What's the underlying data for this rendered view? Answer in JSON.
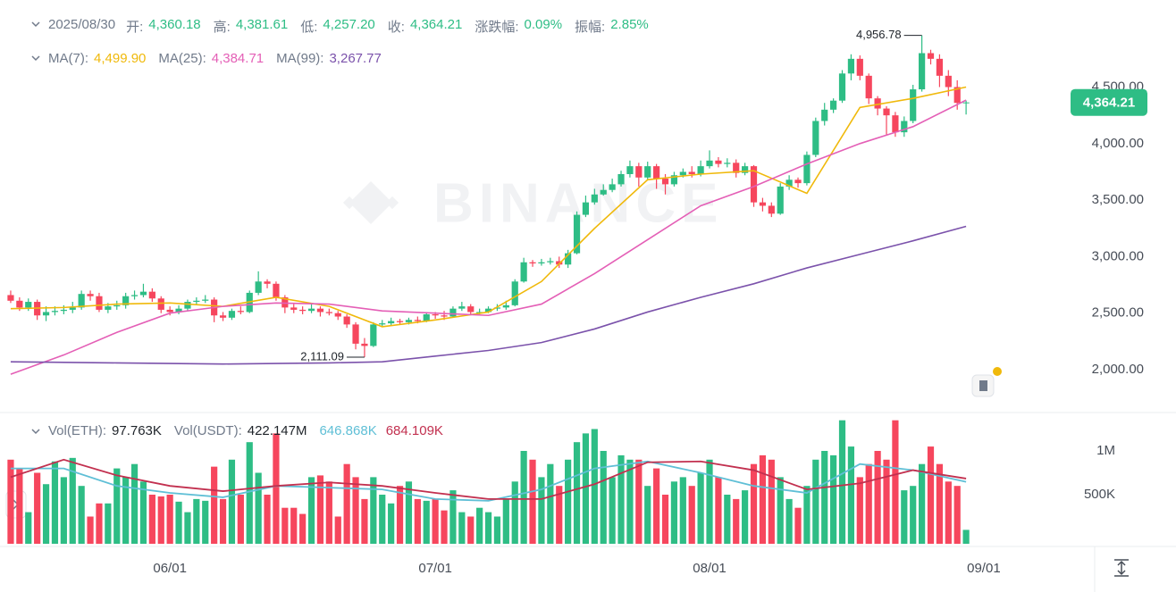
{
  "chart_data": {
    "type": "candlestick",
    "date": "2025/08/30",
    "info": [
      {
        "label": "开:",
        "value": "4,360.18"
      },
      {
        "label": "高:",
        "value": "4,381.61"
      },
      {
        "label": "低:",
        "value": "4,257.20"
      },
      {
        "label": "收:",
        "value": "4,364.21"
      },
      {
        "label": "涨跌幅:",
        "value": "0.09%"
      },
      {
        "label": "振幅:",
        "value": "2.85%"
      }
    ],
    "watermark": "BINANCE",
    "up_color": "#2ebd85",
    "down_color": "#f6465d",
    "xlim": [
      -0.4,
      119
    ],
    "xticks": [
      {
        "value": 18,
        "label": "06/01"
      },
      {
        "value": 48,
        "label": "07/01"
      },
      {
        "value": 79,
        "label": "08/01"
      },
      {
        "value": 110,
        "label": "09/01"
      }
    ],
    "ylim": [
      1700,
      5207
    ],
    "yticks": [
      {
        "value": 2000,
        "label": "2,000.00"
      },
      {
        "value": 2500,
        "label": "2,500.00"
      },
      {
        "value": 3000,
        "label": "3,000.00"
      },
      {
        "value": 3500,
        "label": "3,500.00"
      },
      {
        "value": 4000,
        "label": "4,000.00"
      },
      {
        "value": 4500,
        "label": "4,500.00"
      }
    ],
    "open": [
      2660,
      2610,
      2550,
      2600,
      2480,
      2510,
      2520,
      2530,
      2550,
      2670,
      2650,
      2530,
      2560,
      2570,
      2650,
      2660,
      2690,
      2630,
      2530,
      2510,
      2540,
      2600,
      2610,
      2620,
      2480,
      2460,
      2520,
      2510,
      2680,
      2780,
      2760,
      2640,
      2550,
      2530,
      2520,
      2540,
      2510,
      2500,
      2470,
      2400,
      2230,
      2210,
      2400,
      2410,
      2430,
      2420,
      2440,
      2430,
      2490,
      2480,
      2470,
      2540,
      2560,
      2510,
      2510,
      2540,
      2550,
      2570,
      2780,
      2950,
      2940,
      2950,
      2960,
      2930,
      3030,
      3370,
      3480,
      3550,
      3590,
      3640,
      3730,
      3800,
      3700,
      3800,
      3690,
      3640,
      3720,
      3750,
      3730,
      3800,
      3850,
      3820,
      3830,
      3740,
      3800,
      3480,
      3450,
      3380,
      3620,
      3680,
      3650,
      3900,
      4200,
      4300,
      4380,
      4620,
      4750,
      4600,
      4400,
      4310,
      4250,
      4100,
      4200,
      4480,
      4800,
      4750,
      4600,
      4500,
      4360.18
    ],
    "high": [
      2700,
      2640,
      2630,
      2620,
      2560,
      2560,
      2570,
      2600,
      2700,
      2700,
      2680,
      2590,
      2610,
      2680,
      2700,
      2760,
      2720,
      2650,
      2560,
      2570,
      2620,
      2640,
      2660,
      2640,
      2510,
      2540,
      2560,
      2700,
      2870,
      2800,
      2780,
      2660,
      2580,
      2560,
      2580,
      2560,
      2540,
      2520,
      2490,
      2420,
      2280,
      2420,
      2440,
      2460,
      2450,
      2460,
      2470,
      2510,
      2510,
      2520,
      2560,
      2600,
      2580,
      2540,
      2560,
      2580,
      2610,
      2800,
      2990,
      2970,
      2980,
      2990,
      3000,
      3060,
      3400,
      3540,
      3600,
      3640,
      3690,
      3760,
      3850,
      3830,
      3840,
      3820,
      3730,
      3750,
      3780,
      3800,
      3850,
      3940,
      3880,
      3870,
      3860,
      3830,
      3810,
      3520,
      3480,
      3650,
      3720,
      3700,
      3930,
      4230,
      4360,
      4400,
      4650,
      4790,
      4780,
      4620,
      4420,
      4330,
      4280,
      4240,
      4520,
      4956.78,
      4830,
      4790,
      4650,
      4560,
      4381.61
    ],
    "low": [
      2590,
      2520,
      2520,
      2440,
      2430,
      2480,
      2490,
      2500,
      2530,
      2610,
      2510,
      2500,
      2530,
      2540,
      2620,
      2640,
      2600,
      2500,
      2480,
      2490,
      2520,
      2570,
      2590,
      2420,
      2430,
      2440,
      2490,
      2500,
      2660,
      2720,
      2610,
      2500,
      2500,
      2490,
      2500,
      2470,
      2480,
      2440,
      2370,
      2180,
      2111.09,
      2200,
      2380,
      2390,
      2400,
      2400,
      2410,
      2420,
      2450,
      2440,
      2460,
      2520,
      2490,
      2490,
      2500,
      2520,
      2530,
      2560,
      2770,
      2910,
      2920,
      2930,
      2900,
      2900,
      3020,
      3350,
      3460,
      3540,
      3570,
      3620,
      3700,
      3620,
      3680,
      3600,
      3550,
      3620,
      3700,
      3700,
      3710,
      3780,
      3790,
      3790,
      3700,
      3720,
      3440,
      3400,
      3350,
      3370,
      3590,
      3610,
      3630,
      3880,
      4160,
      4270,
      4360,
      4560,
      4560,
      4350,
      4250,
      4080,
      4060,
      4060,
      4180,
      4460,
      4700,
      4500,
      4420,
      4300,
      4257.2
    ],
    "close": [
      2610,
      2550,
      2600,
      2480,
      2510,
      2520,
      2530,
      2550,
      2670,
      2650,
      2530,
      2560,
      2570,
      2650,
      2660,
      2690,
      2630,
      2530,
      2510,
      2540,
      2600,
      2610,
      2620,
      2480,
      2460,
      2520,
      2510,
      2680,
      2780,
      2760,
      2640,
      2550,
      2530,
      2520,
      2540,
      2510,
      2500,
      2470,
      2400,
      2230,
      2210,
      2400,
      2410,
      2430,
      2420,
      2440,
      2430,
      2490,
      2480,
      2470,
      2540,
      2560,
      2510,
      2510,
      2540,
      2550,
      2570,
      2780,
      2950,
      2940,
      2950,
      2960,
      2930,
      3030,
      3370,
      3480,
      3550,
      3590,
      3640,
      3730,
      3800,
      3700,
      3800,
      3690,
      3640,
      3720,
      3750,
      3730,
      3800,
      3850,
      3820,
      3830,
      3740,
      3800,
      3480,
      3450,
      3380,
      3620,
      3680,
      3650,
      3900,
      4200,
      4300,
      4380,
      4620,
      4750,
      4600,
      4400,
      4310,
      4250,
      4100,
      4200,
      4480,
      4800,
      4750,
      4600,
      4500,
      4360,
      4364.21
    ],
    "ma": [
      {
        "label": "MA(7):",
        "value_label": "4,499.90",
        "color": "#f0b90b",
        "x": [
          0,
          6,
          12,
          18,
          24,
          30,
          36,
          42,
          48,
          54,
          60,
          66,
          72,
          78,
          84,
          90,
          96,
          102,
          108
        ],
        "values": [
          2540,
          2550,
          2580,
          2590,
          2560,
          2640,
          2560,
          2380,
          2440,
          2510,
          2780,
          3250,
          3680,
          3730,
          3760,
          3560,
          4320,
          4400,
          4499.9
        ]
      },
      {
        "label": "MA(25):",
        "value_label": "4,384.71",
        "color": "#e45fb6",
        "x": [
          0,
          6,
          12,
          18,
          24,
          30,
          36,
          42,
          48,
          54,
          60,
          66,
          72,
          78,
          84,
          90,
          96,
          102,
          108
        ],
        "values": [
          1960,
          2130,
          2330,
          2500,
          2560,
          2590,
          2580,
          2520,
          2500,
          2480,
          2580,
          2850,
          3150,
          3450,
          3620,
          3820,
          4000,
          4150,
          4384.71
        ]
      },
      {
        "label": "MA(99):",
        "value_label": "3,267.77",
        "color": "#7b52ab",
        "x": [
          0,
          6,
          12,
          18,
          24,
          30,
          36,
          42,
          48,
          54,
          60,
          66,
          72,
          78,
          84,
          90,
          96,
          102,
          108
        ],
        "values": [
          2070,
          2065,
          2060,
          2055,
          2050,
          2055,
          2060,
          2070,
          2120,
          2170,
          2240,
          2360,
          2510,
          2640,
          2760,
          2900,
          3020,
          3140,
          3267.77
        ]
      }
    ],
    "annotations": [
      {
        "x": 103,
        "value": 4956.78,
        "label": "4,956.78"
      },
      {
        "x": 40,
        "value": 2111.09,
        "label": "2,111.09"
      }
    ],
    "last_price": {
      "value": 4364.21,
      "label": "4,364.21"
    },
    "volume": {
      "label": "Vol(ETH):",
      "value_label": "97.763K",
      "usdt": {
        "label": "Vol(USDT):",
        "value_label": "422.147M"
      },
      "ylim": [
        0,
        1408000
      ],
      "yticks": [
        {
          "value": 500000,
          "label": "500K"
        },
        {
          "value": 1000000,
          "label": "1M"
        }
      ],
      "values": [
        900000,
        800000,
        300000,
        750000,
        620000,
        880000,
        700000,
        920000,
        600000,
        250000,
        400000,
        400000,
        800000,
        700000,
        850000,
        650000,
        500000,
        480000,
        500000,
        420000,
        300000,
        450000,
        430000,
        820000,
        450000,
        900000,
        500000,
        1100000,
        750000,
        500000,
        1200000,
        350000,
        350000,
        280000,
        700000,
        720000,
        650000,
        250000,
        850000,
        700000,
        450000,
        700000,
        500000,
        400000,
        600000,
        650000,
        450000,
        430000,
        450000,
        320000,
        550000,
        300000,
        250000,
        350000,
        300000,
        250000,
        450000,
        650000,
        1000000,
        900000,
        700000,
        850000,
        600000,
        900000,
        1100000,
        1200000,
        1250000,
        1000000,
        700000,
        950000,
        900000,
        900000,
        600000,
        800000,
        500000,
        650000,
        700000,
        600000,
        750000,
        900000,
        700000,
        500000,
        450000,
        550000,
        850000,
        950000,
        900000,
        700000,
        450000,
        350000,
        600000,
        900000,
        1000000,
        950000,
        1350000,
        1050000,
        700000,
        850000,
        1000000,
        900000,
        1350000,
        550000,
        600000,
        850000,
        1050000,
        850000,
        650000,
        600000,
        97763
      ],
      "ma": [
        {
          "value_label": "646.868K",
          "color": "#5fbfd6",
          "x": [
            0,
            6,
            12,
            18,
            24,
            30,
            36,
            42,
            48,
            54,
            60,
            66,
            72,
            78,
            84,
            90,
            96,
            102,
            108
          ],
          "values": [
            800000,
            800000,
            600000,
            520000,
            470000,
            600000,
            580000,
            560000,
            450000,
            430000,
            560000,
            800000,
            880000,
            750000,
            600000,
            520000,
            850000,
            780000,
            646868
          ]
        },
        {
          "value_label": "684.109K",
          "color": "#c2304f",
          "x": [
            0,
            6,
            12,
            18,
            24,
            30,
            36,
            42,
            48,
            54,
            60,
            66,
            72,
            78,
            84,
            90,
            96,
            102,
            108
          ],
          "values": [
            700000,
            900000,
            720000,
            600000,
            540000,
            600000,
            640000,
            600000,
            520000,
            450000,
            450000,
            620000,
            870000,
            880000,
            780000,
            560000,
            630000,
            780000,
            684109
          ]
        }
      ]
    }
  }
}
